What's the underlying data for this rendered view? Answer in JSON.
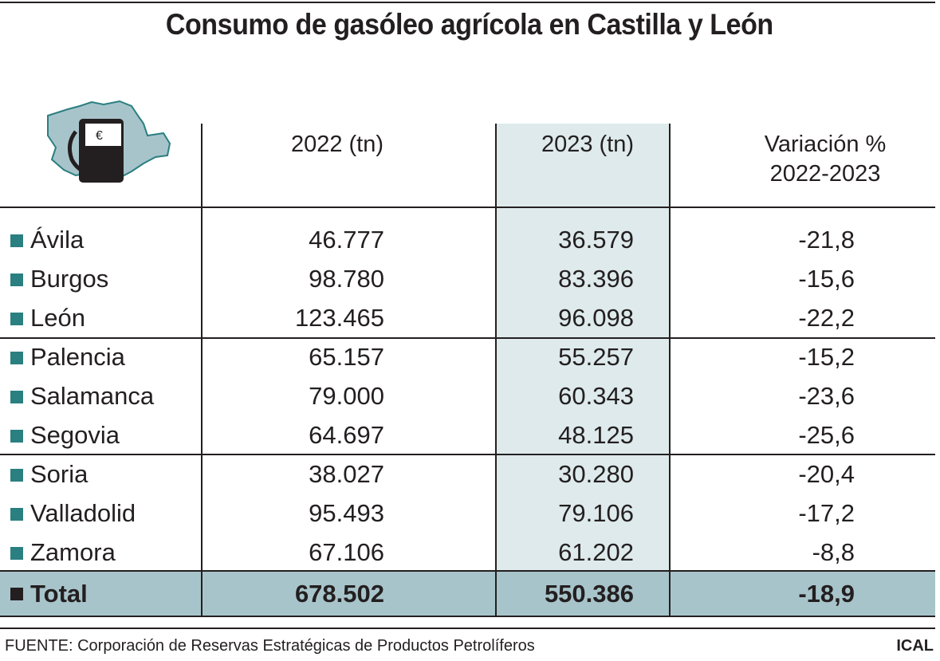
{
  "title": "Consumo de gasóleo agrícola en Castilla y León",
  "icon": "fuel-pump-euro-map-icon",
  "colors": {
    "bullet": "#2a7f80",
    "total_bg": "#a8c4cb",
    "col_2023_bg": "#deeaeb",
    "map": "#a8c4cb"
  },
  "chart_data": {
    "type": "table",
    "title": "Consumo de gasóleo agrícola en Castilla y León",
    "columns": [
      "2022 (tn)",
      "2023 (tn)",
      "Variación % 2022-2023"
    ],
    "header_var_line1": "Variación %",
    "header_var_line2": "2022-2023",
    "rows": [
      {
        "name": "Ávila",
        "y2022": "46.777",
        "y2023": "36.579",
        "var": "-21,8"
      },
      {
        "name": "Burgos",
        "y2022": "98.780",
        "y2023": "83.396",
        "var": "-15,6"
      },
      {
        "name": "León",
        "y2022": "123.465",
        "y2023": "96.098",
        "var": "-22,2"
      },
      {
        "name": "Palencia",
        "y2022": "65.157",
        "y2023": "55.257",
        "var": "-15,2"
      },
      {
        "name": "Salamanca",
        "y2022": "79.000",
        "y2023": "60.343",
        "var": "-23,6"
      },
      {
        "name": "Segovia",
        "y2022": "64.697",
        "y2023": "48.125",
        "var": "-25,6"
      },
      {
        "name": "Soria",
        "y2022": "38.027",
        "y2023": "30.280",
        "var": "-20,4"
      },
      {
        "name": "Valladolid",
        "y2022": "95.493",
        "y2023": "79.106",
        "var": "-17,2"
      },
      {
        "name": "Zamora",
        "y2022": "67.106",
        "y2023": "61.202",
        "var": "-8,8"
      }
    ],
    "total": {
      "name": "Total",
      "y2022": "678.502",
      "y2023": "550.386",
      "var": "-18,9"
    }
  },
  "source": "FUENTE: Corporación de Reservas Estratégicas de Productos Petrolíferos",
  "credit": "ICAL"
}
